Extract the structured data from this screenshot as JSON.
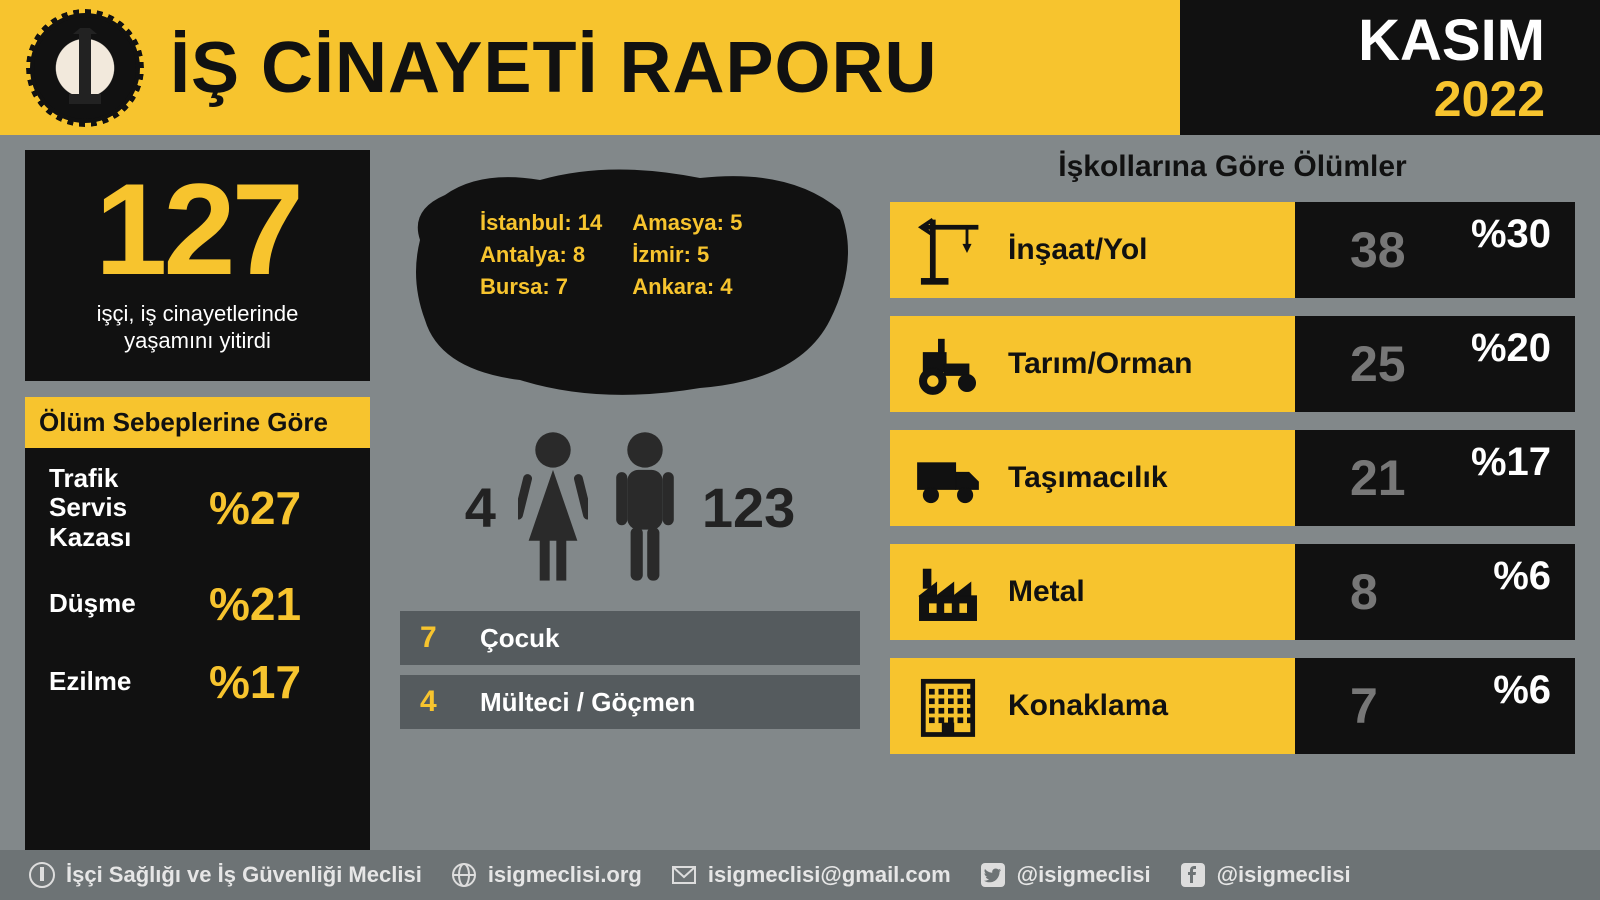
{
  "header": {
    "title": "İŞ CİNAYETİ RAPORU",
    "month": "KASIM",
    "year": "2022"
  },
  "total": {
    "number": "127",
    "caption1": "işçi, iş cinayetlerinde",
    "caption2": "yaşamını yitirdi"
  },
  "causes": {
    "title": "Ölüm Sebeplerine Göre",
    "items": [
      {
        "label": "Trafik\nServis\nKazası",
        "pct": "%27"
      },
      {
        "label": "Düşme",
        "pct": "%21"
      },
      {
        "label": "Ezilme",
        "pct": "%17"
      }
    ]
  },
  "map": {
    "cities": [
      {
        "name": "İstanbul",
        "val": "14"
      },
      {
        "name": "Amasya",
        "val": "5"
      },
      {
        "name": "Antalya",
        "val": "8"
      },
      {
        "name": "İzmir",
        "val": "5"
      },
      {
        "name": "Bursa",
        "val": "7"
      },
      {
        "name": "Ankara",
        "val": "4"
      }
    ]
  },
  "gender": {
    "female": "4",
    "male": "123"
  },
  "subgroups": [
    {
      "num": "7",
      "label": "Çocuk"
    },
    {
      "num": "4",
      "label": "Mülteci / Göçmen"
    }
  ],
  "sectors": {
    "title": "İşkollarına Göre Ölümler",
    "rows": [
      {
        "icon": "crane",
        "label": "İnşaat/Yol",
        "count": "38",
        "pct": "%30"
      },
      {
        "icon": "tractor",
        "label": "Tarım/Orman",
        "count": "25",
        "pct": "%20"
      },
      {
        "icon": "truck",
        "label": "Taşımacılık",
        "count": "21",
        "pct": "%17"
      },
      {
        "icon": "factory",
        "label": "Metal",
        "count": "8",
        "pct": "%6"
      },
      {
        "icon": "hotel",
        "label": "Konaklama",
        "count": "7",
        "pct": "%6"
      }
    ]
  },
  "footer": {
    "org": "İşçi Sağlığı ve İş Güvenliği Meclisi",
    "web": "isigmeclisi.org",
    "email": "isigmeclisi@gmail.com",
    "twitter": "@isigmeclisi",
    "facebook": "@isigmeclisi"
  },
  "colors": {
    "yellow": "#f7c42e",
    "black": "#111111",
    "gray_bg": "#82888a",
    "gray_box": "#555b5e",
    "dim": "#777777",
    "white": "#ffffff"
  }
}
